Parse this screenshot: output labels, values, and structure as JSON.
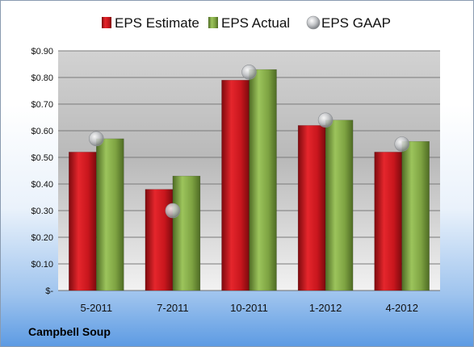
{
  "chart_data": {
    "type": "bar",
    "categories": [
      "5-2011",
      "7-2011",
      "10-2011",
      "1-2012",
      "4-2012"
    ],
    "series": [
      {
        "name": "EPS Estimate",
        "kind": "bar",
        "color": "#c8161d",
        "values": [
          0.52,
          0.38,
          0.79,
          0.62,
          0.52
        ]
      },
      {
        "name": "EPS Actual",
        "kind": "bar",
        "color": "#7ea342",
        "values": [
          0.57,
          0.43,
          0.83,
          0.64,
          0.56
        ]
      },
      {
        "name": "EPS GAAP",
        "kind": "marker",
        "color": "#b9bcc0",
        "values": [
          0.57,
          0.3,
          0.82,
          0.64,
          0.55
        ]
      }
    ],
    "yticks": [
      {
        "value": 0.0,
        "label": "$-"
      },
      {
        "value": 0.1,
        "label": "$0.10"
      },
      {
        "value": 0.2,
        "label": "$0.20"
      },
      {
        "value": 0.3,
        "label": "$0.30"
      },
      {
        "value": 0.4,
        "label": "$0.40"
      },
      {
        "value": 0.5,
        "label": "$0.50"
      },
      {
        "value": 0.6,
        "label": "$0.60"
      },
      {
        "value": 0.7,
        "label": "$0.70"
      },
      {
        "value": 0.8,
        "label": "$0.80"
      },
      {
        "value": 0.9,
        "label": "$0.90"
      }
    ],
    "ylim": [
      0,
      0.9
    ],
    "grid": true,
    "legend_position": "top",
    "title": "",
    "xlabel": "",
    "ylabel": ""
  },
  "footer": {
    "company": "Campbell Soup"
  }
}
